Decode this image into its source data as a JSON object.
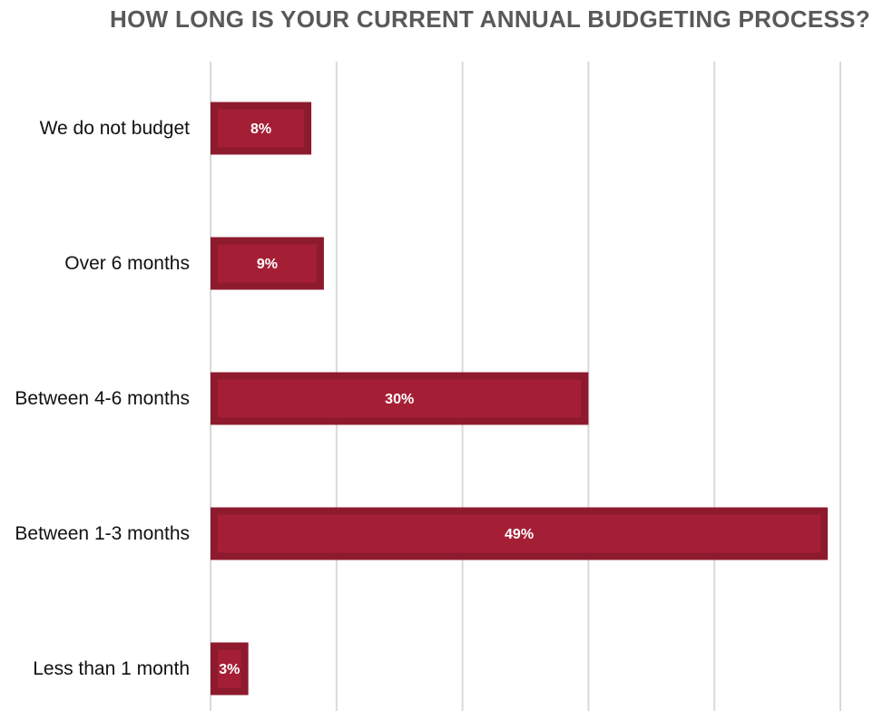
{
  "chart_data": {
    "type": "bar",
    "orientation": "horizontal",
    "title": "HOW LONG IS YOUR CURRENT ANNUAL BUDGETING PROCESS?",
    "categories": [
      "We do not budget",
      "Over 6 months",
      "Between 4-6 months",
      "Between 1-3 months",
      "Less than 1 month"
    ],
    "values": [
      8,
      9,
      30,
      49,
      3
    ],
    "data_labels": [
      "8%",
      "9%",
      "30%",
      "49%",
      "3%"
    ],
    "unit": "%",
    "xlim": [
      0,
      50
    ],
    "gridline_step": 10,
    "grid": true,
    "legend": "none",
    "axis_tick_labels_shown": false,
    "colors": {
      "bar_fill": "#A41F35",
      "bar_border": "#8E1A2E",
      "gridline": "#D9D9D9",
      "title": "#595959",
      "category_text": "#111111",
      "data_label_text": "#FFFFFF"
    }
  }
}
